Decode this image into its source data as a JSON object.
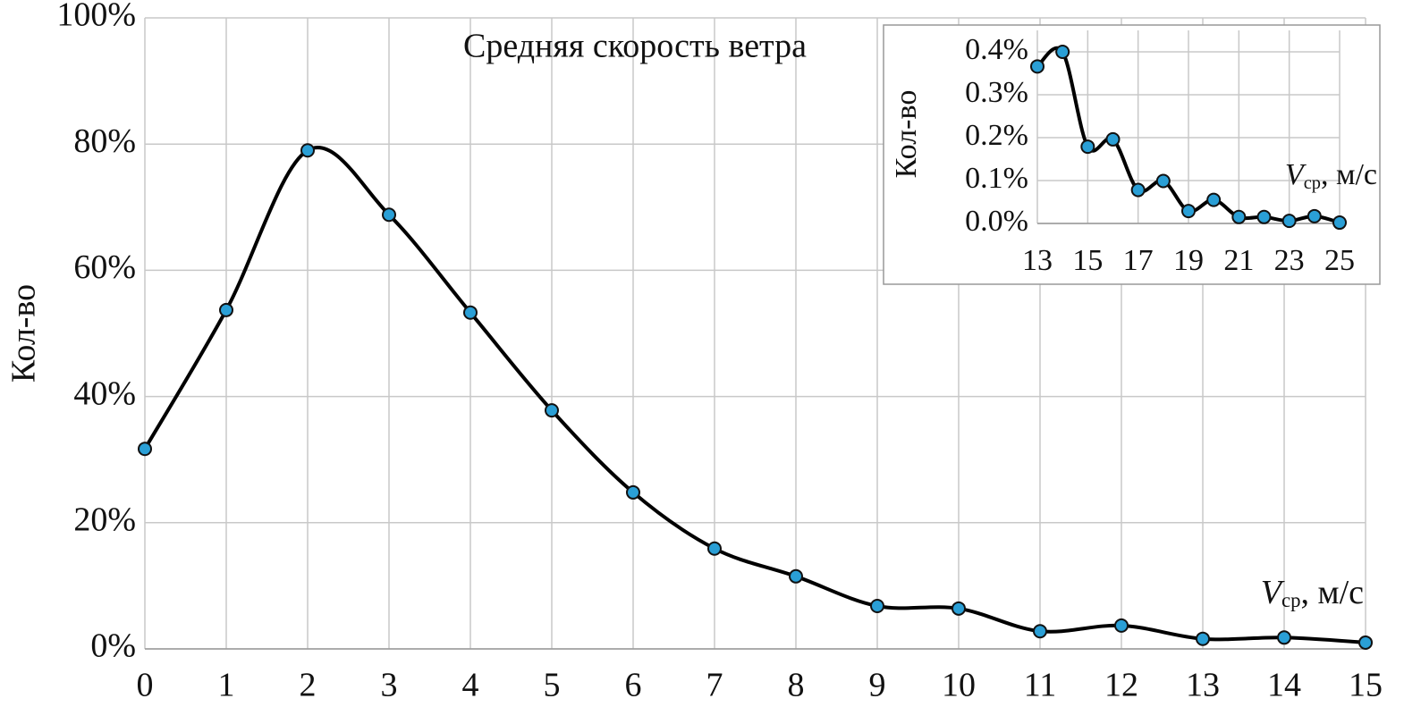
{
  "chart_data": [
    {
      "type": "line",
      "title": "Средняя скорость ветра",
      "y_label": "Кол-во",
      "x_label": {
        "symbol": "V",
        "subscript": "ср",
        "unit": ", м/с"
      },
      "x": [
        0,
        1,
        2,
        3,
        4,
        5,
        6,
        7,
        8,
        9,
        10,
        11,
        12,
        13,
        14,
        15
      ],
      "series": [
        {
          "color": "#000000",
          "marker_color": "#2a9fd6",
          "values": [
            31.7,
            53.7,
            79.0,
            68.8,
            53.3,
            37.8,
            24.8,
            15.9,
            11.5,
            6.8,
            6.4,
            2.8,
            3.7,
            1.6,
            1.8,
            1.0
          ]
        }
      ],
      "xlim": [
        0,
        15
      ],
      "xticks": [
        0,
        1,
        2,
        3,
        4,
        5,
        6,
        7,
        8,
        9,
        10,
        11,
        12,
        13,
        14,
        15
      ],
      "ylim": [
        0,
        100
      ],
      "yticks": [
        {
          "value": 0,
          "label": "0%"
        },
        {
          "value": 20,
          "label": "20%"
        },
        {
          "value": 40,
          "label": "40%"
        },
        {
          "value": 60,
          "label": "60%"
        },
        {
          "value": 80,
          "label": "80%"
        },
        {
          "value": 100,
          "label": "100%"
        }
      ],
      "grid": true
    },
    {
      "type": "line",
      "y_label": "Кол-во",
      "x_label": {
        "symbol": "V",
        "subscript": "ср",
        "unit": ", м/с"
      },
      "x": [
        13,
        14,
        15,
        16,
        17,
        18,
        19,
        20,
        21,
        22,
        23,
        24,
        25
      ],
      "series": [
        {
          "color": "#000000",
          "marker_color": "#2a9fd6",
          "values": [
            0.366,
            0.4,
            0.179,
            0.196,
            0.078,
            0.099,
            0.029,
            0.055,
            0.015,
            0.015,
            0.006,
            0.017,
            0.002
          ]
        }
      ],
      "xlim": [
        13,
        25
      ],
      "xticks": [
        13,
        15,
        17,
        19,
        21,
        23,
        25
      ],
      "ylim": [
        0,
        0.45
      ],
      "yticks": [
        {
          "value": 0,
          "label": "0.0%"
        },
        {
          "value": 0.1,
          "label": "0.1%"
        },
        {
          "value": 0.2,
          "label": "0.2%"
        },
        {
          "value": 0.3,
          "label": "0.3%"
        },
        {
          "value": 0.4,
          "label": "0.4%"
        }
      ],
      "grid": true
    }
  ]
}
